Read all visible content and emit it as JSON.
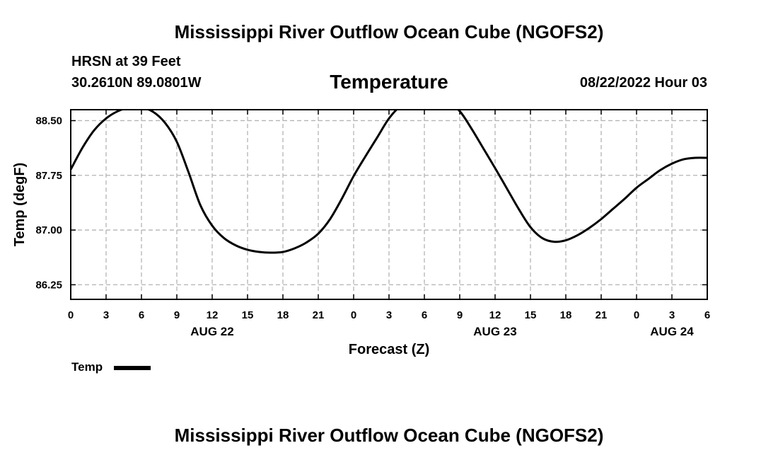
{
  "header": {
    "title": "Mississippi River Outflow Ocean Cube (NGOFS2)",
    "station": "HRSN at 39 Feet",
    "coords": "30.2610N  89.0801W",
    "variable": "Temperature",
    "datetime": "08/22/2022 Hour 03"
  },
  "footer": {
    "title": "Mississippi River Outflow Ocean Cube (NGOFS2)"
  },
  "legend": {
    "label": "Temp",
    "color": "#000000"
  },
  "chart_data": {
    "type": "line",
    "title": "Temperature",
    "xlabel": "Forecast (Z)",
    "ylabel": "Temp (degF)",
    "x_unit": "hours since 08/22/2022 00Z",
    "xlim": [
      0,
      54
    ],
    "ylim": [
      86.05,
      88.65
    ],
    "x_ticks": [
      0,
      3,
      6,
      9,
      12,
      15,
      18,
      21,
      24,
      27,
      30,
      33,
      36,
      39,
      42,
      45,
      48,
      51,
      54
    ],
    "x_tick_labels": [
      "0",
      "3",
      "6",
      "9",
      "12",
      "15",
      "18",
      "21",
      "0",
      "3",
      "6",
      "9",
      "12",
      "15",
      "18",
      "21",
      "0",
      "3",
      "6"
    ],
    "date_labels": [
      {
        "x": 12,
        "label": "AUG 22"
      },
      {
        "x": 36,
        "label": "AUG 23"
      },
      {
        "x": 51,
        "label": "AUG 24"
      }
    ],
    "y_ticks": [
      86.25,
      87.0,
      87.75,
      88.5
    ],
    "y_tick_labels": [
      "86.25",
      "87.00",
      "87.75",
      "88.50"
    ],
    "grid": true,
    "series": [
      {
        "name": "Temp",
        "color": "#000000",
        "x": [
          0,
          1,
          2,
          3,
          4,
          5,
          6,
          7,
          8,
          9,
          10,
          11,
          12,
          13,
          14,
          15,
          16,
          17,
          18,
          19,
          20,
          21,
          22,
          23,
          24,
          25,
          26,
          27,
          28,
          29,
          30,
          31,
          32,
          33,
          34,
          35,
          36,
          37,
          38,
          39,
          40,
          41,
          42,
          43,
          44,
          45,
          46,
          47,
          48,
          49,
          50,
          51,
          52,
          53,
          54
        ],
        "y": [
          87.83,
          88.13,
          88.37,
          88.53,
          88.63,
          88.68,
          88.68,
          88.62,
          88.47,
          88.21,
          87.79,
          87.34,
          87.06,
          86.89,
          86.79,
          86.73,
          86.7,
          86.69,
          86.7,
          86.75,
          86.83,
          86.95,
          87.15,
          87.43,
          87.74,
          88.01,
          88.27,
          88.53,
          88.7,
          88.75,
          88.76,
          88.76,
          88.75,
          88.63,
          88.39,
          88.12,
          87.85,
          87.57,
          87.29,
          87.04,
          86.89,
          86.84,
          86.86,
          86.93,
          87.03,
          87.15,
          87.29,
          87.43,
          87.58,
          87.7,
          87.82,
          87.91,
          87.97,
          87.99,
          87.99
        ]
      }
    ]
  }
}
